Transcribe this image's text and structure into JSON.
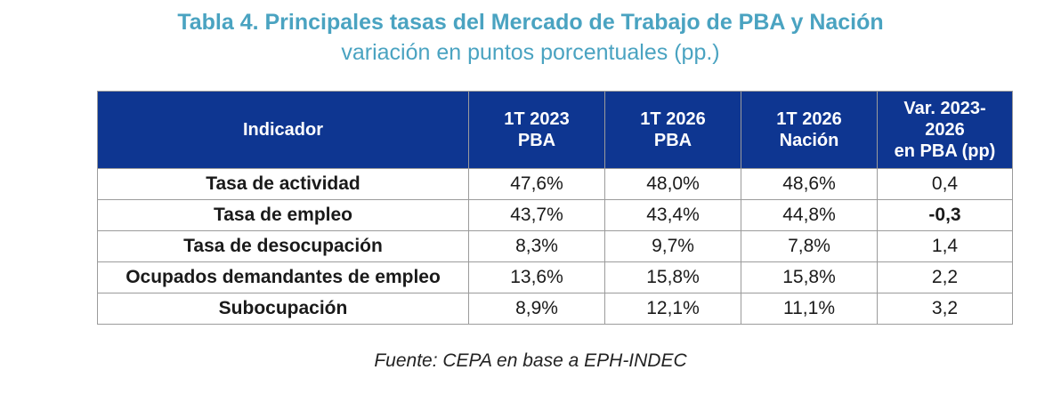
{
  "title": "Tabla 4. Principales tasas del Mercado de Trabajo de PBA y Nación",
  "subtitle": "variación en puntos porcentuales (pp.)",
  "table": {
    "headers": [
      [
        "Indicador"
      ],
      [
        "1T 2023",
        "PBA"
      ],
      [
        "1T 2026",
        "PBA"
      ],
      [
        "1T 2026",
        "Nación"
      ],
      [
        "Var. 2023-",
        "2026",
        "en PBA (pp)"
      ]
    ],
    "rows": [
      {
        "indicator": "Tasa de actividad",
        "v2023_pba": "47,6%",
        "v2026_pba": "48,0%",
        "v2026_nacion": "48,6%",
        "var": "0,4"
      },
      {
        "indicator": "Tasa de empleo",
        "v2023_pba": "43,7%",
        "v2026_pba": "43,4%",
        "v2026_nacion": "44,8%",
        "var": "-0,3"
      },
      {
        "indicator": "Tasa de desocupación",
        "v2023_pba": "8,3%",
        "v2026_pba": "9,7%",
        "v2026_nacion": "7,8%",
        "var": "1,4"
      },
      {
        "indicator": "Ocupados demandantes de empleo",
        "v2023_pba": "13,6%",
        "v2026_pba": "15,8%",
        "v2026_nacion": "15,8%",
        "var": "2,2"
      },
      {
        "indicator": "Subocupación",
        "v2023_pba": "8,9%",
        "v2026_pba": "12,1%",
        "v2026_nacion": "11,1%",
        "var": "3,2"
      }
    ]
  },
  "source": "Fuente: CEPA en base a EPH-INDEC",
  "colors": {
    "title": "#4aa3c1",
    "header_bg": "#0e3691",
    "header_text": "#ffffff",
    "negative": "#e00000",
    "border": "#9b9b9b"
  }
}
